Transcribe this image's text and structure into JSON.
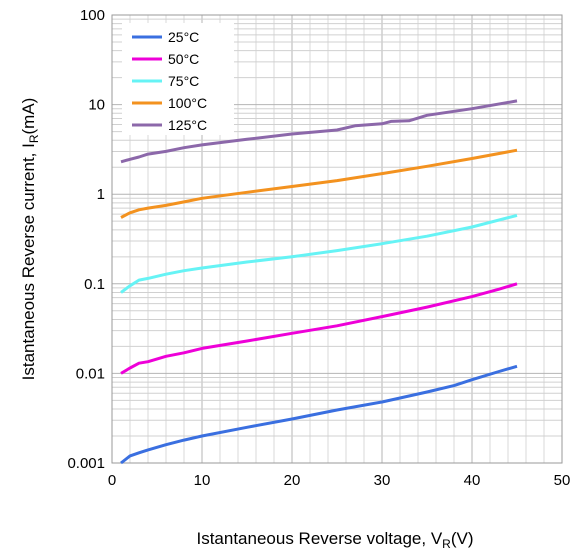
{
  "chart_data": {
    "type": "line",
    "xlabel": {
      "main": "Istantaneous Reverse voltage, V",
      "sub": "R",
      "unit": "(V)"
    },
    "ylabel": {
      "main": "Istantaneous Reverse current, I",
      "sub": "R",
      "unit": "(mA)"
    },
    "xlim": [
      0,
      50
    ],
    "ylim": [
      0.001,
      100
    ],
    "yscale": "log",
    "grid": true,
    "legend": "top-left",
    "x_ticks": [
      "0",
      "10",
      "20",
      "30",
      "40",
      "50"
    ],
    "y_ticks": [
      "0.001",
      "0.01",
      "0.1",
      "1",
      "10",
      "100"
    ],
    "series": [
      {
        "name": "25°C",
        "color": "#3a6fe0",
        "x": [
          1,
          2,
          3,
          4,
          6,
          8,
          10,
          15,
          20,
          25,
          30,
          35,
          38,
          40,
          43,
          45
        ],
        "y": [
          0.001,
          0.0012,
          0.0013,
          0.0014,
          0.0016,
          0.0018,
          0.002,
          0.0025,
          0.0031,
          0.0039,
          0.0048,
          0.0062,
          0.0073,
          0.0085,
          0.0105,
          0.012
        ]
      },
      {
        "name": "50°C",
        "color": "#ee00d8",
        "x": [
          1,
          2,
          3,
          4,
          6,
          8,
          10,
          15,
          20,
          25,
          30,
          35,
          40,
          43,
          45
        ],
        "y": [
          0.01,
          0.0115,
          0.013,
          0.0135,
          0.0155,
          0.017,
          0.019,
          0.023,
          0.028,
          0.034,
          0.043,
          0.055,
          0.072,
          0.087,
          0.1
        ]
      },
      {
        "name": "75°C",
        "color": "#66f3f5",
        "x": [
          1,
          2,
          3,
          4,
          6,
          8,
          10,
          15,
          20,
          25,
          30,
          35,
          40,
          45
        ],
        "y": [
          0.08,
          0.095,
          0.11,
          0.115,
          0.128,
          0.14,
          0.15,
          0.175,
          0.2,
          0.235,
          0.28,
          0.34,
          0.43,
          0.58
        ]
      },
      {
        "name": "100°C",
        "color": "#f3921f",
        "x": [
          1,
          2,
          3,
          4,
          6,
          8,
          10,
          15,
          20,
          25,
          30,
          35,
          40,
          45
        ],
        "y": [
          0.55,
          0.62,
          0.67,
          0.7,
          0.75,
          0.82,
          0.9,
          1.05,
          1.22,
          1.42,
          1.7,
          2.05,
          2.5,
          3.1
        ]
      },
      {
        "name": "125°C",
        "color": "#8c68aa",
        "x": [
          1,
          2,
          3,
          4,
          6,
          8,
          10,
          15,
          20,
          25,
          27,
          30,
          31,
          33,
          35,
          40,
          45
        ],
        "y": [
          2.3,
          2.45,
          2.6,
          2.8,
          3.0,
          3.3,
          3.55,
          4.1,
          4.7,
          5.2,
          5.8,
          6.1,
          6.5,
          6.6,
          7.6,
          9.0,
          11.0
        ]
      }
    ]
  }
}
